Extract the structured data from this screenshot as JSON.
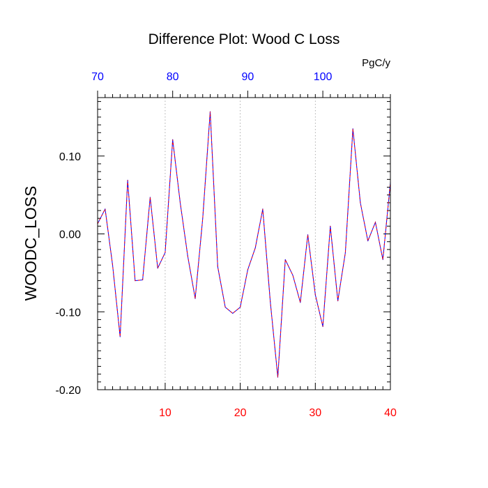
{
  "chart_data": {
    "type": "line",
    "title": "Difference Plot: Wood C Loss",
    "units": "PgC/y",
    "ylabel": "WOODC_LOSS",
    "xlabel": "",
    "xlim": [
      1,
      40
    ],
    "ylim": [
      -0.2,
      0.175
    ],
    "bottom_axis": {
      "ticks": [
        10,
        20,
        30,
        40
      ],
      "labels": [
        "10",
        "20",
        "30",
        "40"
      ],
      "color": "#ff0000"
    },
    "top_axis": {
      "ticks": [
        70,
        80,
        90,
        100
      ],
      "labels": [
        "70",
        "80",
        "90",
        "100"
      ],
      "color": "#0000ff",
      "offset_from_bottom": 69
    },
    "y_ticks": [
      0.1,
      0.0,
      -0.1,
      -0.2
    ],
    "y_tick_labels": [
      "0.10",
      "0.00",
      "-0.10",
      "-0.20"
    ],
    "grid": {
      "vertical_dotted_at": [
        10,
        20,
        30
      ]
    },
    "series": [
      {
        "colors": [
          "#0000ff",
          "#ff0000"
        ],
        "x": [
          1,
          2,
          3,
          4,
          5,
          6,
          7,
          8,
          9,
          10,
          11,
          12,
          13,
          14,
          15,
          16,
          17,
          18,
          19,
          20,
          21,
          22,
          23,
          24,
          25,
          26,
          27,
          28,
          29,
          30,
          31,
          32,
          33,
          34,
          35,
          36,
          37,
          38,
          39,
          40
        ],
        "values": [
          0.013,
          0.032,
          -0.04,
          -0.132,
          0.069,
          -0.06,
          -0.059,
          0.047,
          -0.044,
          -0.024,
          0.121,
          0.04,
          -0.028,
          -0.083,
          0.02,
          0.157,
          -0.042,
          -0.094,
          -0.102,
          -0.094,
          -0.046,
          -0.018,
          0.032,
          -0.087,
          -0.184,
          -0.033,
          -0.053,
          -0.088,
          -0.001,
          -0.078,
          -0.119,
          0.01,
          -0.086,
          -0.024,
          0.135,
          0.04,
          -0.009,
          0.015,
          -0.033,
          0.066
        ]
      }
    ]
  }
}
